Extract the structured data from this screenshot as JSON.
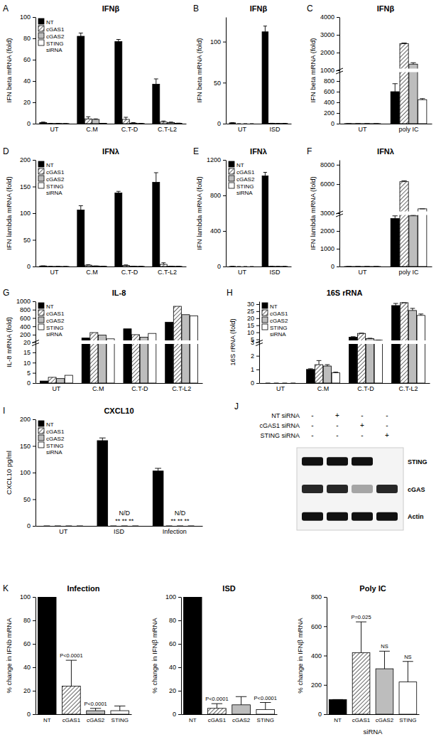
{
  "chart_data": [
    {
      "panel": "A",
      "type": "bar",
      "title": "IFNβ",
      "y_label": "IFN beta mRNA (fold)",
      "categories": [
        "UT",
        "C.M",
        "C.T-D",
        "C.T-L2"
      ],
      "series": [
        {
          "name": "NT",
          "color": "#000000",
          "values": [
            1,
            82,
            77,
            37
          ],
          "errors": [
            0.5,
            3,
            2,
            5
          ]
        },
        {
          "name": "cGAS1",
          "color": "#ffffff",
          "values": [
            0.2,
            4.5,
            4,
            1.5
          ],
          "errors": [
            0,
            2,
            2,
            1
          ]
        },
        {
          "name": "cGAS2",
          "color": "#bdbdbd",
          "values": [
            0.2,
            4,
            0.5,
            1
          ],
          "errors": [
            0,
            0.5,
            0.5,
            0.5
          ]
        },
        {
          "name": "STING siRNA",
          "color": "#ffffff",
          "values": [
            0.1,
            0.3,
            0.2,
            0.3
          ],
          "errors": [
            0,
            0,
            0,
            0.2
          ]
        }
      ],
      "ylim": [
        0,
        100
      ],
      "yticks": [
        0,
        20,
        40,
        60,
        80,
        100
      ],
      "legend": "upper left"
    },
    {
      "panel": "B",
      "type": "bar",
      "title": "IFNβ",
      "y_label": "IFN beta mRNA (fold)",
      "categories": [
        "UT",
        "ISD"
      ],
      "series": [
        {
          "name": "NT",
          "color": "#000000",
          "values": [
            1,
            112
          ],
          "errors": [
            0.2,
            7
          ]
        },
        {
          "name": "cGAS1",
          "color": "#ffffff",
          "values": [
            0,
            0.5
          ],
          "errors": [
            0,
            0
          ]
        },
        {
          "name": "cGAS2",
          "color": "#bdbdbd",
          "values": [
            0,
            0.3
          ],
          "errors": [
            0,
            0
          ]
        },
        {
          "name": "STING siRNA",
          "color": "#ffffff",
          "values": [
            0,
            0.3
          ],
          "errors": [
            0,
            0
          ]
        }
      ],
      "ylim": [
        0,
        130
      ],
      "yticks": [
        0,
        50,
        100
      ]
    },
    {
      "panel": "C",
      "type": "bar",
      "title": "IFNβ",
      "y_label": "IFN beta mRNA (fold)",
      "categories": [
        "UT",
        "poly IC"
      ],
      "series": [
        {
          "name": "NT",
          "color": "#000000",
          "values": [
            1,
            600
          ],
          "errors": [
            0,
            150
          ]
        },
        {
          "name": "cGAS1",
          "color": "#ffffff",
          "values": [
            1,
            2500
          ],
          "errors": [
            0,
            40
          ]
        },
        {
          "name": "cGAS2",
          "color": "#bdbdbd",
          "values": [
            1,
            1350
          ],
          "errors": [
            0,
            80
          ]
        },
        {
          "name": "STING siRNA",
          "color": "#ffffff",
          "values": [
            1,
            450
          ],
          "errors": [
            0,
            20
          ]
        }
      ],
      "ylim": [
        0,
        4000
      ],
      "yticks": [
        0,
        200,
        400,
        600,
        800,
        1000,
        2000,
        3000,
        4000
      ]
    },
    {
      "panel": "D",
      "type": "bar",
      "title": "IFNλ",
      "y_label": "IFN lambda mRNA (fold)",
      "categories": [
        "UT",
        "C.M",
        "C.T-D",
        "C.T-L2"
      ],
      "series": [
        {
          "name": "NT",
          "color": "#000000",
          "values": [
            1,
            106,
            138,
            158
          ],
          "errors": [
            0.2,
            8,
            3,
            18
          ]
        },
        {
          "name": "cGAS1",
          "color": "#ffffff",
          "values": [
            0.2,
            2.5,
            2,
            4
          ],
          "errors": [
            0,
            1,
            1,
            3
          ]
        },
        {
          "name": "cGAS2",
          "color": "#bdbdbd",
          "values": [
            0.2,
            1,
            0.5,
            0.5
          ],
          "errors": [
            0,
            0,
            0,
            0
          ]
        },
        {
          "name": "STING siRNA",
          "color": "#ffffff",
          "values": [
            0.1,
            0.5,
            0.3,
            0.3
          ],
          "errors": [
            0,
            0,
            0,
            0
          ]
        }
      ],
      "ylim": [
        0,
        200
      ],
      "yticks": [
        0,
        50,
        100,
        150,
        200
      ],
      "legend": "upper left"
    },
    {
      "panel": "E",
      "type": "bar",
      "title": "IFNλ",
      "y_label": "IFN lambda mRNA (fold)",
      "categories": [
        "UT",
        "ISD"
      ],
      "series": [
        {
          "name": "NT",
          "color": "#000000",
          "values": [
            1,
            1020
          ],
          "errors": [
            0,
            40
          ]
        },
        {
          "name": "cGAS1",
          "color": "#ffffff",
          "values": [
            0,
            2
          ],
          "errors": [
            0,
            0
          ]
        },
        {
          "name": "cGAS2",
          "color": "#bdbdbd",
          "values": [
            0,
            1
          ],
          "errors": [
            0,
            0
          ]
        },
        {
          "name": "STING siRNA",
          "color": "#ffffff",
          "values": [
            0,
            1
          ],
          "errors": [
            0,
            0
          ]
        }
      ],
      "ylim": [
        0,
        1200
      ],
      "yticks": [
        0,
        400,
        800,
        1200
      ],
      "legend": "upper left"
    },
    {
      "panel": "F",
      "type": "bar",
      "title": "IFNλ",
      "y_label": "IFN lambda mRNA (fold)",
      "categories": [
        "UT",
        "poly IC"
      ],
      "series": [
        {
          "name": "NT",
          "color": "#000000",
          "values": [
            1,
            2700
          ],
          "errors": [
            0,
            150
          ]
        },
        {
          "name": "cGAS1",
          "color": "#ffffff",
          "values": [
            1,
            6250
          ],
          "errors": [
            0,
            100
          ]
        },
        {
          "name": "cGAS2",
          "color": "#bdbdbd",
          "values": [
            1,
            2850
          ],
          "errors": [
            0,
            40
          ]
        },
        {
          "name": "STING siRNA",
          "color": "#ffffff",
          "values": [
            1,
            3450
          ],
          "errors": [
            0,
            0
          ]
        }
      ],
      "ylim": [
        0,
        8500
      ],
      "yticks": [
        0,
        1000,
        2000,
        3000,
        6000,
        8000
      ]
    },
    {
      "panel": "G",
      "type": "bar",
      "title": "IL-8",
      "y_label": "IL-8 mRNA (fold)",
      "categories": [
        "UT",
        "C.M",
        "C.T-D",
        "C.T-L2"
      ],
      "series": [
        {
          "name": "NT",
          "color": "#000000",
          "values": [
            1,
            120,
            340,
            500
          ]
        },
        {
          "name": "cGAS1",
          "color": "#ffffff",
          "values": [
            2.8,
            250,
            200,
            880
          ]
        },
        {
          "name": "cGAS2",
          "color": "#bdbdbd",
          "values": [
            2.2,
            190,
            140,
            680
          ]
        },
        {
          "name": "STING siRNA",
          "color": "#ffffff",
          "values": [
            3.8,
            100,
            230,
            650
          ]
        }
      ],
      "ylim": [
        0,
        1000
      ],
      "yticks": [
        0,
        5,
        10,
        15,
        20,
        200,
        400,
        600,
        800,
        1000
      ],
      "legend": "upper left"
    },
    {
      "panel": "H",
      "type": "bar",
      "title": "16S rRNA",
      "y_label": "16S rRNA (fold)",
      "categories": [
        "UT",
        "C.M",
        "C.T-D",
        "C.T-L2"
      ],
      "series": [
        {
          "name": "NT",
          "color": "#000000",
          "values": [
            0,
            1.0,
            6.5,
            29
          ],
          "errors": [
            0,
            0.05,
            0.4,
            1.5
          ]
        },
        {
          "name": "cGAS1",
          "color": "#ffffff",
          "values": [
            0,
            1.35,
            9.2,
            31
          ],
          "errors": [
            0,
            0.3,
            0.2,
            0
          ]
        },
        {
          "name": "cGAS2",
          "color": "#bdbdbd",
          "values": [
            0,
            1.25,
            5.5,
            25.5
          ],
          "errors": [
            0,
            0.1,
            0.3,
            1.5
          ]
        },
        {
          "name": "STING siRNA",
          "color": "#ffffff",
          "values": [
            0,
            0.75,
            4.4,
            22
          ],
          "errors": [
            0,
            0.05,
            0.1,
            1
          ]
        }
      ],
      "ylim": [
        0,
        32
      ],
      "yticks": [
        0,
        1,
        2,
        3,
        5,
        10,
        15,
        20,
        25,
        30
      ],
      "legend": "upper left"
    },
    {
      "panel": "I",
      "type": "bar",
      "title": "CXCL10",
      "y_label": "CXCL10 pg/ml",
      "categories": [
        "UT",
        "ISD",
        "Infection"
      ],
      "series": [
        {
          "name": "NT",
          "color": "#000000",
          "values": [
            0,
            160,
            103
          ],
          "errors": [
            0,
            5,
            5
          ]
        },
        {
          "name": "cGAS1",
          "color": "#ffffff",
          "values": [
            0,
            0,
            0
          ],
          "errors": [
            0,
            0,
            0
          ]
        },
        {
          "name": "cGAS2",
          "color": "#bdbdbd",
          "values": [
            0,
            0,
            0
          ],
          "errors": [
            0,
            0,
            0
          ]
        },
        {
          "name": "STING siRNA",
          "color": "#ffffff",
          "values": [
            0,
            0,
            0
          ],
          "errors": [
            0,
            0,
            0
          ]
        }
      ],
      "ylim": [
        0,
        200
      ],
      "yticks": [
        0,
        50,
        100,
        150,
        200
      ],
      "legend": "upper left",
      "annotations": [
        {
          "text": "N/D",
          "category": "ISD"
        },
        {
          "text": "** ** **",
          "category": "ISD"
        },
        {
          "text": "N/D",
          "category": "Infection"
        },
        {
          "text": "** ** **",
          "category": "Infection"
        }
      ]
    },
    {
      "panel": "J",
      "type": "blot",
      "rows": [
        {
          "name": "NT siRNA",
          "signs": [
            "-",
            "+",
            "-",
            "-"
          ]
        },
        {
          "name": "cGAS1 siRNA",
          "signs": [
            "-",
            "-",
            "+",
            "-"
          ]
        },
        {
          "name": "STING siRNA",
          "signs": [
            "-",
            "-",
            "-",
            "+"
          ]
        }
      ],
      "bands": [
        {
          "name": "STING",
          "intensity": [
            1,
            1,
            1,
            0
          ]
        },
        {
          "name": "cGAS",
          "intensity": [
            0.9,
            0.9,
            0.35,
            0.9
          ]
        },
        {
          "name": "Actin",
          "intensity": [
            1,
            1,
            1,
            1
          ]
        }
      ]
    },
    {
      "panel": "K",
      "type": "bar",
      "title": "Infection",
      "y_label": "% change in IFNb mRNA",
      "categories": [
        "NT",
        "cGAS1",
        "cGAS2",
        "STING"
      ],
      "values": [
        100,
        24,
        3,
        3
      ],
      "errors": [
        0,
        22,
        2,
        4
      ],
      "colors": [
        "#000000",
        "#ffffff",
        "#bdbdbd",
        "#ffffff"
      ],
      "ylim": [
        0,
        100
      ],
      "yticks": [
        0,
        20,
        40,
        60,
        80,
        100
      ],
      "annotations": [
        {
          "text": "P<0.0001",
          "category": "cGAS1"
        },
        {
          "text": "P<0.0001",
          "category": "cGAS2"
        }
      ]
    },
    {
      "type": "bar",
      "title": "ISD",
      "y_label": "% change in IFNβ mRNA",
      "categories": [
        "NT",
        "cGAS1",
        "cGAS2",
        "STING"
      ],
      "values": [
        100,
        5,
        8,
        4
      ],
      "errors": [
        0,
        4,
        7,
        6
      ],
      "colors": [
        "#000000",
        "#ffffff",
        "#bdbdbd",
        "#ffffff"
      ],
      "ylim": [
        0,
        100
      ],
      "yticks": [
        0,
        20,
        40,
        60,
        80,
        100
      ],
      "annotations": [
        {
          "text": "P<0.0001",
          "category": "cGAS1"
        },
        {
          "text": "P<0.0001",
          "category": "STING"
        }
      ]
    },
    {
      "type": "bar",
      "title": "Poly IC",
      "y_label": "% change in IFNβ mRNA",
      "x_label": "siRNA",
      "categories": [
        "NT",
        "cGAS1",
        "cGAS2",
        "STING"
      ],
      "values": [
        100,
        420,
        310,
        220
      ],
      "errors": [
        0,
        210,
        120,
        140
      ],
      "colors": [
        "#000000",
        "#ffffff",
        "#bdbdbd",
        "#ffffff"
      ],
      "ylim": [
        0,
        800
      ],
      "yticks": [
        0,
        200,
        400,
        600,
        800
      ],
      "annotations": [
        {
          "text": "P=0.025",
          "category": "cGAS1"
        },
        {
          "text": "NS",
          "category": "cGAS2"
        },
        {
          "text": "NS",
          "category": "STING"
        }
      ]
    }
  ]
}
